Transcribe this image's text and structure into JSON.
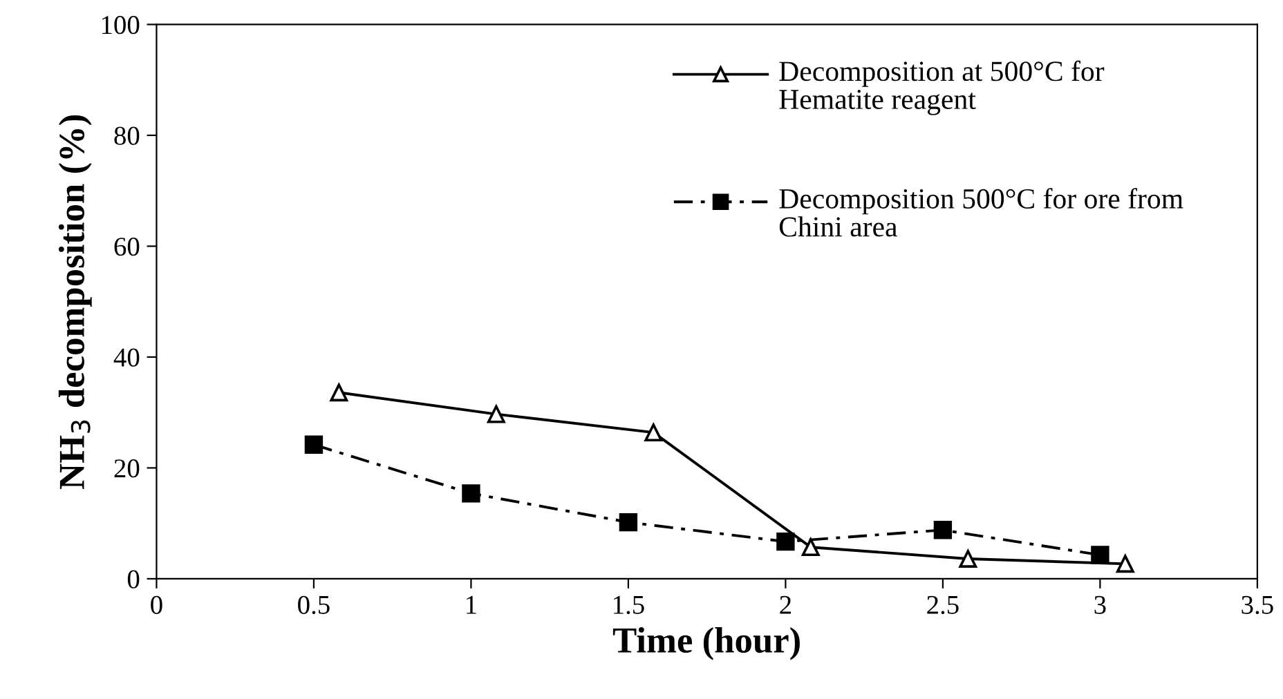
{
  "chart_data": {
    "type": "line",
    "xlabel": "Time (hour)",
    "ylabel": "NH$_{3}$ decomposition (%)",
    "xlim": [
      0,
      3.5
    ],
    "xticks": [
      0,
      0.5,
      1,
      1.5,
      2,
      2.5,
      3,
      3.5
    ],
    "ylim": [
      0,
      100
    ],
    "yticks": [
      0,
      20,
      40,
      60,
      80,
      100
    ],
    "grid": false,
    "legend": "top right",
    "series": [
      {
        "name": "Decomposition at 500°C for Hematite reagent",
        "color": "#000000",
        "marker": "triangle",
        "line_style": "solid",
        "x": [
          0.58,
          1.08,
          1.58,
          2.08,
          2.58,
          3.08
        ],
        "values": [
          33.6,
          29.7,
          26.4,
          5.7,
          3.6,
          2.7
        ]
      },
      {
        "name": "Decomposition 500°C for ore from Chini area",
        "color": "#000000",
        "marker": "square",
        "line_style": "dashdot",
        "x": [
          0.5,
          1,
          1.5,
          2,
          2.5,
          3
        ],
        "values": [
          24.2,
          15.4,
          10.2,
          6.7,
          8.8,
          4.3
        ]
      }
    ]
  }
}
